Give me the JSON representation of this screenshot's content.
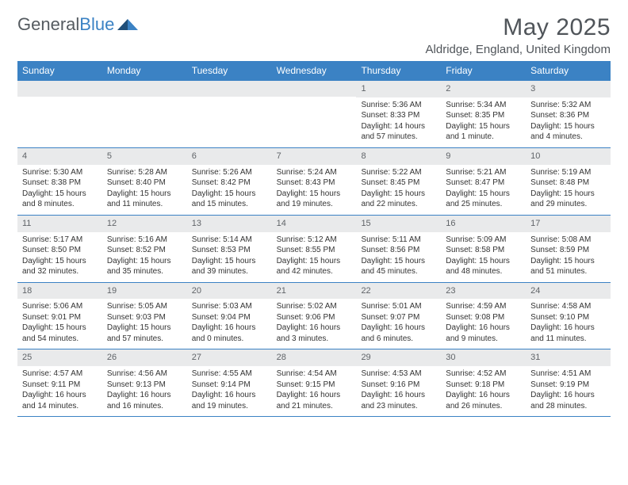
{
  "logo": {
    "text1": "General",
    "text2": "Blue"
  },
  "header": {
    "month_title": "May 2025",
    "location": "Aldridge, England, United Kingdom"
  },
  "colors": {
    "header_bg": "#3b82c4",
    "header_fg": "#ffffff",
    "daynum_bg": "#e9eaeb",
    "rule": "#3b82c4",
    "text": "#333333"
  },
  "days_of_week": [
    "Sunday",
    "Monday",
    "Tuesday",
    "Wednesday",
    "Thursday",
    "Friday",
    "Saturday"
  ],
  "weeks": [
    [
      {
        "n": "",
        "sunrise": "",
        "sunset": "",
        "daylight": ""
      },
      {
        "n": "",
        "sunrise": "",
        "sunset": "",
        "daylight": ""
      },
      {
        "n": "",
        "sunrise": "",
        "sunset": "",
        "daylight": ""
      },
      {
        "n": "",
        "sunrise": "",
        "sunset": "",
        "daylight": ""
      },
      {
        "n": "1",
        "sunrise": "Sunrise: 5:36 AM",
        "sunset": "Sunset: 8:33 PM",
        "daylight": "Daylight: 14 hours and 57 minutes."
      },
      {
        "n": "2",
        "sunrise": "Sunrise: 5:34 AM",
        "sunset": "Sunset: 8:35 PM",
        "daylight": "Daylight: 15 hours and 1 minute."
      },
      {
        "n": "3",
        "sunrise": "Sunrise: 5:32 AM",
        "sunset": "Sunset: 8:36 PM",
        "daylight": "Daylight: 15 hours and 4 minutes."
      }
    ],
    [
      {
        "n": "4",
        "sunrise": "Sunrise: 5:30 AM",
        "sunset": "Sunset: 8:38 PM",
        "daylight": "Daylight: 15 hours and 8 minutes."
      },
      {
        "n": "5",
        "sunrise": "Sunrise: 5:28 AM",
        "sunset": "Sunset: 8:40 PM",
        "daylight": "Daylight: 15 hours and 11 minutes."
      },
      {
        "n": "6",
        "sunrise": "Sunrise: 5:26 AM",
        "sunset": "Sunset: 8:42 PM",
        "daylight": "Daylight: 15 hours and 15 minutes."
      },
      {
        "n": "7",
        "sunrise": "Sunrise: 5:24 AM",
        "sunset": "Sunset: 8:43 PM",
        "daylight": "Daylight: 15 hours and 19 minutes."
      },
      {
        "n": "8",
        "sunrise": "Sunrise: 5:22 AM",
        "sunset": "Sunset: 8:45 PM",
        "daylight": "Daylight: 15 hours and 22 minutes."
      },
      {
        "n": "9",
        "sunrise": "Sunrise: 5:21 AM",
        "sunset": "Sunset: 8:47 PM",
        "daylight": "Daylight: 15 hours and 25 minutes."
      },
      {
        "n": "10",
        "sunrise": "Sunrise: 5:19 AM",
        "sunset": "Sunset: 8:48 PM",
        "daylight": "Daylight: 15 hours and 29 minutes."
      }
    ],
    [
      {
        "n": "11",
        "sunrise": "Sunrise: 5:17 AM",
        "sunset": "Sunset: 8:50 PM",
        "daylight": "Daylight: 15 hours and 32 minutes."
      },
      {
        "n": "12",
        "sunrise": "Sunrise: 5:16 AM",
        "sunset": "Sunset: 8:52 PM",
        "daylight": "Daylight: 15 hours and 35 minutes."
      },
      {
        "n": "13",
        "sunrise": "Sunrise: 5:14 AM",
        "sunset": "Sunset: 8:53 PM",
        "daylight": "Daylight: 15 hours and 39 minutes."
      },
      {
        "n": "14",
        "sunrise": "Sunrise: 5:12 AM",
        "sunset": "Sunset: 8:55 PM",
        "daylight": "Daylight: 15 hours and 42 minutes."
      },
      {
        "n": "15",
        "sunrise": "Sunrise: 5:11 AM",
        "sunset": "Sunset: 8:56 PM",
        "daylight": "Daylight: 15 hours and 45 minutes."
      },
      {
        "n": "16",
        "sunrise": "Sunrise: 5:09 AM",
        "sunset": "Sunset: 8:58 PM",
        "daylight": "Daylight: 15 hours and 48 minutes."
      },
      {
        "n": "17",
        "sunrise": "Sunrise: 5:08 AM",
        "sunset": "Sunset: 8:59 PM",
        "daylight": "Daylight: 15 hours and 51 minutes."
      }
    ],
    [
      {
        "n": "18",
        "sunrise": "Sunrise: 5:06 AM",
        "sunset": "Sunset: 9:01 PM",
        "daylight": "Daylight: 15 hours and 54 minutes."
      },
      {
        "n": "19",
        "sunrise": "Sunrise: 5:05 AM",
        "sunset": "Sunset: 9:03 PM",
        "daylight": "Daylight: 15 hours and 57 minutes."
      },
      {
        "n": "20",
        "sunrise": "Sunrise: 5:03 AM",
        "sunset": "Sunset: 9:04 PM",
        "daylight": "Daylight: 16 hours and 0 minutes."
      },
      {
        "n": "21",
        "sunrise": "Sunrise: 5:02 AM",
        "sunset": "Sunset: 9:06 PM",
        "daylight": "Daylight: 16 hours and 3 minutes."
      },
      {
        "n": "22",
        "sunrise": "Sunrise: 5:01 AM",
        "sunset": "Sunset: 9:07 PM",
        "daylight": "Daylight: 16 hours and 6 minutes."
      },
      {
        "n": "23",
        "sunrise": "Sunrise: 4:59 AM",
        "sunset": "Sunset: 9:08 PM",
        "daylight": "Daylight: 16 hours and 9 minutes."
      },
      {
        "n": "24",
        "sunrise": "Sunrise: 4:58 AM",
        "sunset": "Sunset: 9:10 PM",
        "daylight": "Daylight: 16 hours and 11 minutes."
      }
    ],
    [
      {
        "n": "25",
        "sunrise": "Sunrise: 4:57 AM",
        "sunset": "Sunset: 9:11 PM",
        "daylight": "Daylight: 16 hours and 14 minutes."
      },
      {
        "n": "26",
        "sunrise": "Sunrise: 4:56 AM",
        "sunset": "Sunset: 9:13 PM",
        "daylight": "Daylight: 16 hours and 16 minutes."
      },
      {
        "n": "27",
        "sunrise": "Sunrise: 4:55 AM",
        "sunset": "Sunset: 9:14 PM",
        "daylight": "Daylight: 16 hours and 19 minutes."
      },
      {
        "n": "28",
        "sunrise": "Sunrise: 4:54 AM",
        "sunset": "Sunset: 9:15 PM",
        "daylight": "Daylight: 16 hours and 21 minutes."
      },
      {
        "n": "29",
        "sunrise": "Sunrise: 4:53 AM",
        "sunset": "Sunset: 9:16 PM",
        "daylight": "Daylight: 16 hours and 23 minutes."
      },
      {
        "n": "30",
        "sunrise": "Sunrise: 4:52 AM",
        "sunset": "Sunset: 9:18 PM",
        "daylight": "Daylight: 16 hours and 26 minutes."
      },
      {
        "n": "31",
        "sunrise": "Sunrise: 4:51 AM",
        "sunset": "Sunset: 9:19 PM",
        "daylight": "Daylight: 16 hours and 28 minutes."
      }
    ]
  ]
}
